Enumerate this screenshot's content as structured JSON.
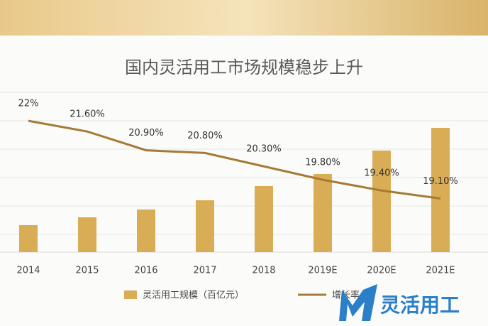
{
  "chart_data": {
    "type": "bar-line",
    "title": "国内灵活用工市场规模稳步上升",
    "categories": [
      "2014",
      "2015",
      "2016",
      "2017",
      "2018",
      "2019E",
      "2020E",
      "2021E"
    ],
    "series": [
      {
        "name": "灵活用工规模（百亿元）",
        "type": "bar",
        "color": "#d9ad55",
        "values": [
          38,
          49,
          60,
          73,
          93,
          110,
          143,
          175
        ]
      },
      {
        "name": "增长率",
        "type": "line",
        "axis": "y2",
        "color": "#a67a35",
        "values": [
          22,
          21.6,
          20.9,
          20.8,
          20.3,
          19.8,
          19.4,
          19.1
        ],
        "value_labels": [
          "22%",
          "21.60%",
          "20.90%",
          "20.80%",
          "20.30%",
          "19.80%",
          "19.40%",
          "19.10%"
        ]
      }
    ],
    "ylim": [
      0,
      200
    ],
    "y2lim": [
      17.1,
      22.4
    ],
    "grid": true,
    "legend": "bottom"
  },
  "watermark": "灵活用工"
}
